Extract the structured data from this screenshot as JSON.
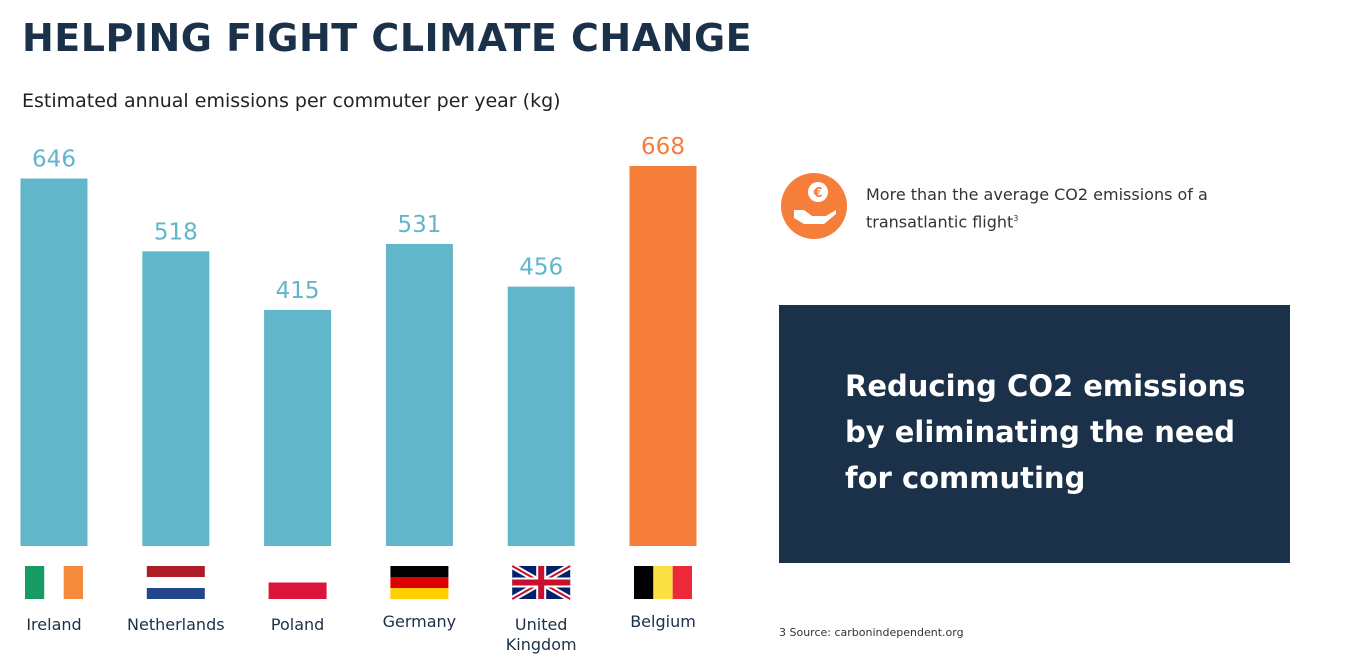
{
  "chart_data": {
    "type": "bar",
    "title": "HELPING FIGHT CLIMATE CHANGE",
    "subtitle": "Estimated annual emissions per commuter per year (kg)",
    "categories": [
      "Ireland",
      "Netherlands",
      "Poland",
      "Germany",
      "United Kingdom",
      "Belgium"
    ],
    "values": [
      646,
      518,
      415,
      531,
      456,
      668
    ],
    "colors": [
      "#62b6c9",
      "#62b6c9",
      "#62b6c9",
      "#62b6c9",
      "#62b6c9",
      "#f47e3a"
    ]
  },
  "callout": {
    "text": "More than the average CO2 emissions of a transatlantic flight",
    "footnote_ref": "3"
  },
  "banner": {
    "lines": [
      "Reducing CO2 emissions",
      "by eliminating the need",
      "for commuting"
    ]
  },
  "source": "3 Source: carbonindependent.org"
}
